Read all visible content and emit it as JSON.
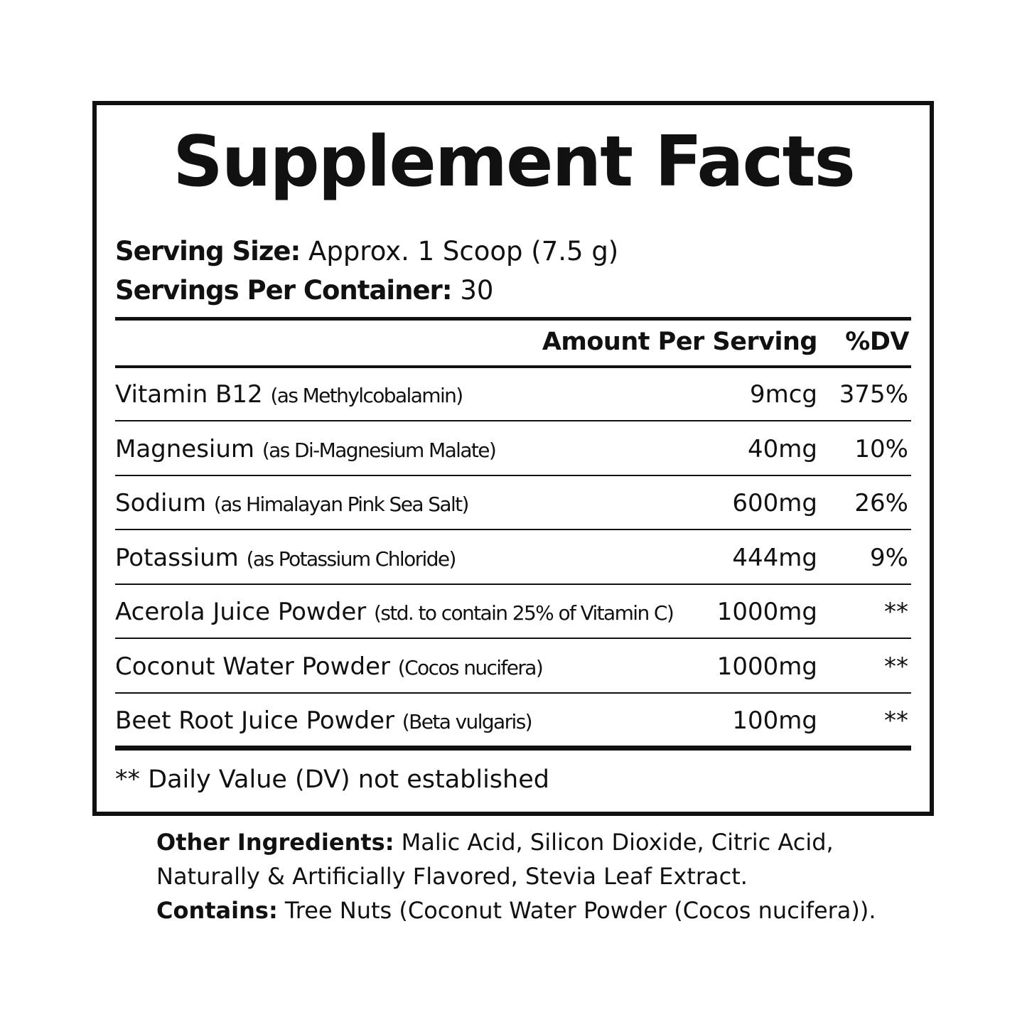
{
  "title": "Supplement Facts",
  "serving_size_label": "Serving Size:",
  "serving_size_value": " Approx. 1 Scoop (7.5 g)",
  "servings_label": "Servings Per Container:",
  "servings_value": " 30",
  "header": {
    "amount": "Amount Per Serving",
    "dv": "%DV"
  },
  "rows": [
    {
      "name": "Vitamin B12 ",
      "sub": "(as Methylcobalamin)",
      "amount": "9mcg",
      "dv": "375%"
    },
    {
      "name": "Magnesium ",
      "sub": "(as Di-Magnesium Malate)",
      "amount": "40mg",
      "dv": "10%"
    },
    {
      "name": "Sodium ",
      "sub": "(as Himalayan Pink Sea Salt)",
      "amount": "600mg",
      "dv": "26%"
    },
    {
      "name": "Potassium ",
      "sub": "(as Potassium Chloride)",
      "amount": "444mg",
      "dv": "9%"
    },
    {
      "name": "Acerola Juice Powder ",
      "sub": "(std. to contain 25% of Vitamin C)",
      "amount": "1000mg",
      "dv": "**"
    },
    {
      "name": "Coconut Water Powder ",
      "sub": "(Cocos nucifera)",
      "amount": "1000mg",
      "dv": "**"
    },
    {
      "name": "Beet Root Juice Powder ",
      "sub": "(Beta vulgaris)",
      "amount": "100mg",
      "dv": "**"
    }
  ],
  "footnote": "** Daily Value (DV) not established",
  "other_ingredients_label": "Other Ingredients:",
  "other_ingredients_line1": " Malic Acid, Silicon Dioxide, Citric Acid,",
  "other_ingredients_line2": "Naturally & Artificially Flavored, Stevia Leaf Extract.",
  "contains_label": "Contains:",
  "contains_value": " Tree Nuts (Coconut Water Powder (Cocos nucifera))."
}
